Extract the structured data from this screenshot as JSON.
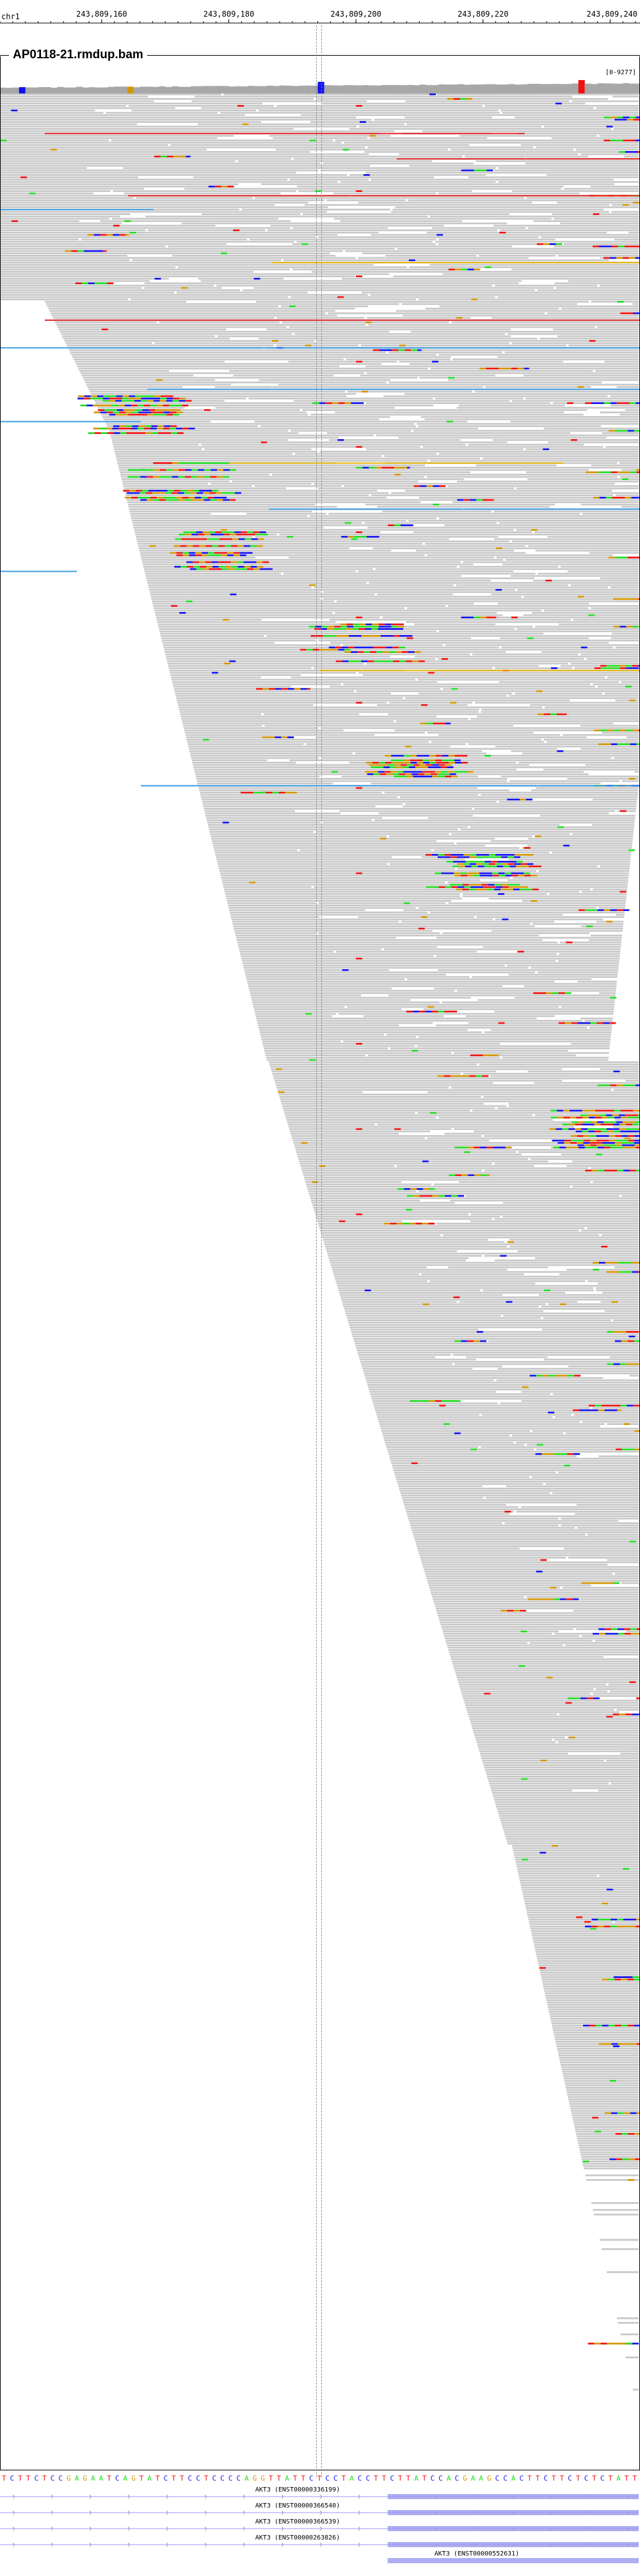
{
  "ruler": {
    "chromosome": "chr1",
    "ticks": [
      {
        "label": "243,809,160",
        "pos": 243809160
      },
      {
        "label": "243,809,180",
        "pos": 243809180
      },
      {
        "label": "243,809,200",
        "pos": 243809200
      },
      {
        "label": "243,809,220",
        "pos": 243809220
      },
      {
        "label": "243,809,240",
        "pos": 243809240
      }
    ],
    "view_start": 243809144,
    "view_end": 243809244.5
  },
  "track": {
    "title": "AP0118-21.rmdup.bam",
    "coverage_range": "[0-9277]"
  },
  "colors": {
    "read": "#c8c8c8",
    "read_edge": "#a0a0a0",
    "A": "#22dd22",
    "C": "#1111ee",
    "G": "#d29600",
    "T": "#ee1111",
    "insert_large": "#e02020",
    "insert_yellow": "#e6b400",
    "insert_blue": "#3ca0e6",
    "gene": "#9999ee"
  },
  "sequence": "TCTTCTCCGAGAATCAGTATCTTCCTCCCCAGGTTATTCTCCTACCTTCTTATCCACGAAGCCACTTCTTCTCTCTATT",
  "genes": [
    {
      "label": "AKT3 (ENST00000336199)",
      "highlight_from": 243809205
    },
    {
      "label": "AKT3 (ENST00000366540)",
      "highlight_from": 243809205
    },
    {
      "label": "AKT3 (ENST00000366539)",
      "highlight_from": 243809205
    },
    {
      "label": "AKT3 (ENST00000263826)",
      "highlight_from": 243809205
    },
    {
      "label": "AKT3 (ENST00000552631)",
      "highlight_from": 243809205
    }
  ]
}
